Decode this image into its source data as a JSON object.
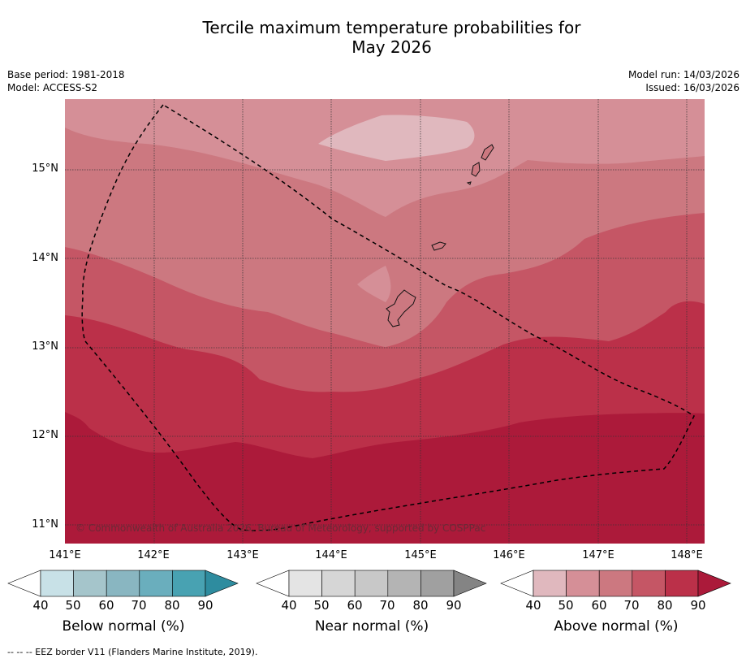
{
  "title_line1": "Tercile maximum temperature probabilities for",
  "title_line2": "May 2026",
  "meta": {
    "base_period": "Base period: 1981-2018",
    "model": "Model: ACCESS-S2",
    "model_run": "Model run: 14/03/2026",
    "issued": "Issued: 16/03/2026"
  },
  "map": {
    "copyright": "© Commonwealth of Australia 2026, Bureau of Meteorology, supported by COSPPac",
    "lat_labels": [
      "15°N",
      "14°N",
      "13°N",
      "12°N",
      "11°N"
    ],
    "lon_labels": [
      "141°E",
      "142°E",
      "143°E",
      "144°E",
      "145°E",
      "146°E",
      "147°E",
      "148°E"
    ]
  },
  "legends": [
    {
      "label": "Below normal (%)",
      "ticks": [
        "40",
        "50",
        "60",
        "70",
        "80",
        "90"
      ],
      "colors": [
        "#ffffff",
        "#c8e1e7",
        "#a5c5cb",
        "#89b6c1",
        "#6aaebd",
        "#48a2b2",
        "#2e8c9f"
      ]
    },
    {
      "label": "Near normal (%)",
      "ticks": [
        "40",
        "50",
        "60",
        "70",
        "80",
        "90"
      ],
      "colors": [
        "#ffffff",
        "#e4e4e4",
        "#d6d6d6",
        "#c8c8c8",
        "#b4b4b4",
        "#a0a0a0",
        "#848484"
      ]
    },
    {
      "label": "Above normal (%)",
      "ticks": [
        "40",
        "50",
        "60",
        "70",
        "80",
        "90"
      ],
      "colors": [
        "#ffffff",
        "#e0b8be",
        "#d58f97",
        "#cc7880",
        "#c55665",
        "#bb3049",
        "#ab1a3a"
      ]
    }
  ],
  "footnote": "--  --  -- EEZ border V11 (Flanders Marine Institute, 2019)."
}
